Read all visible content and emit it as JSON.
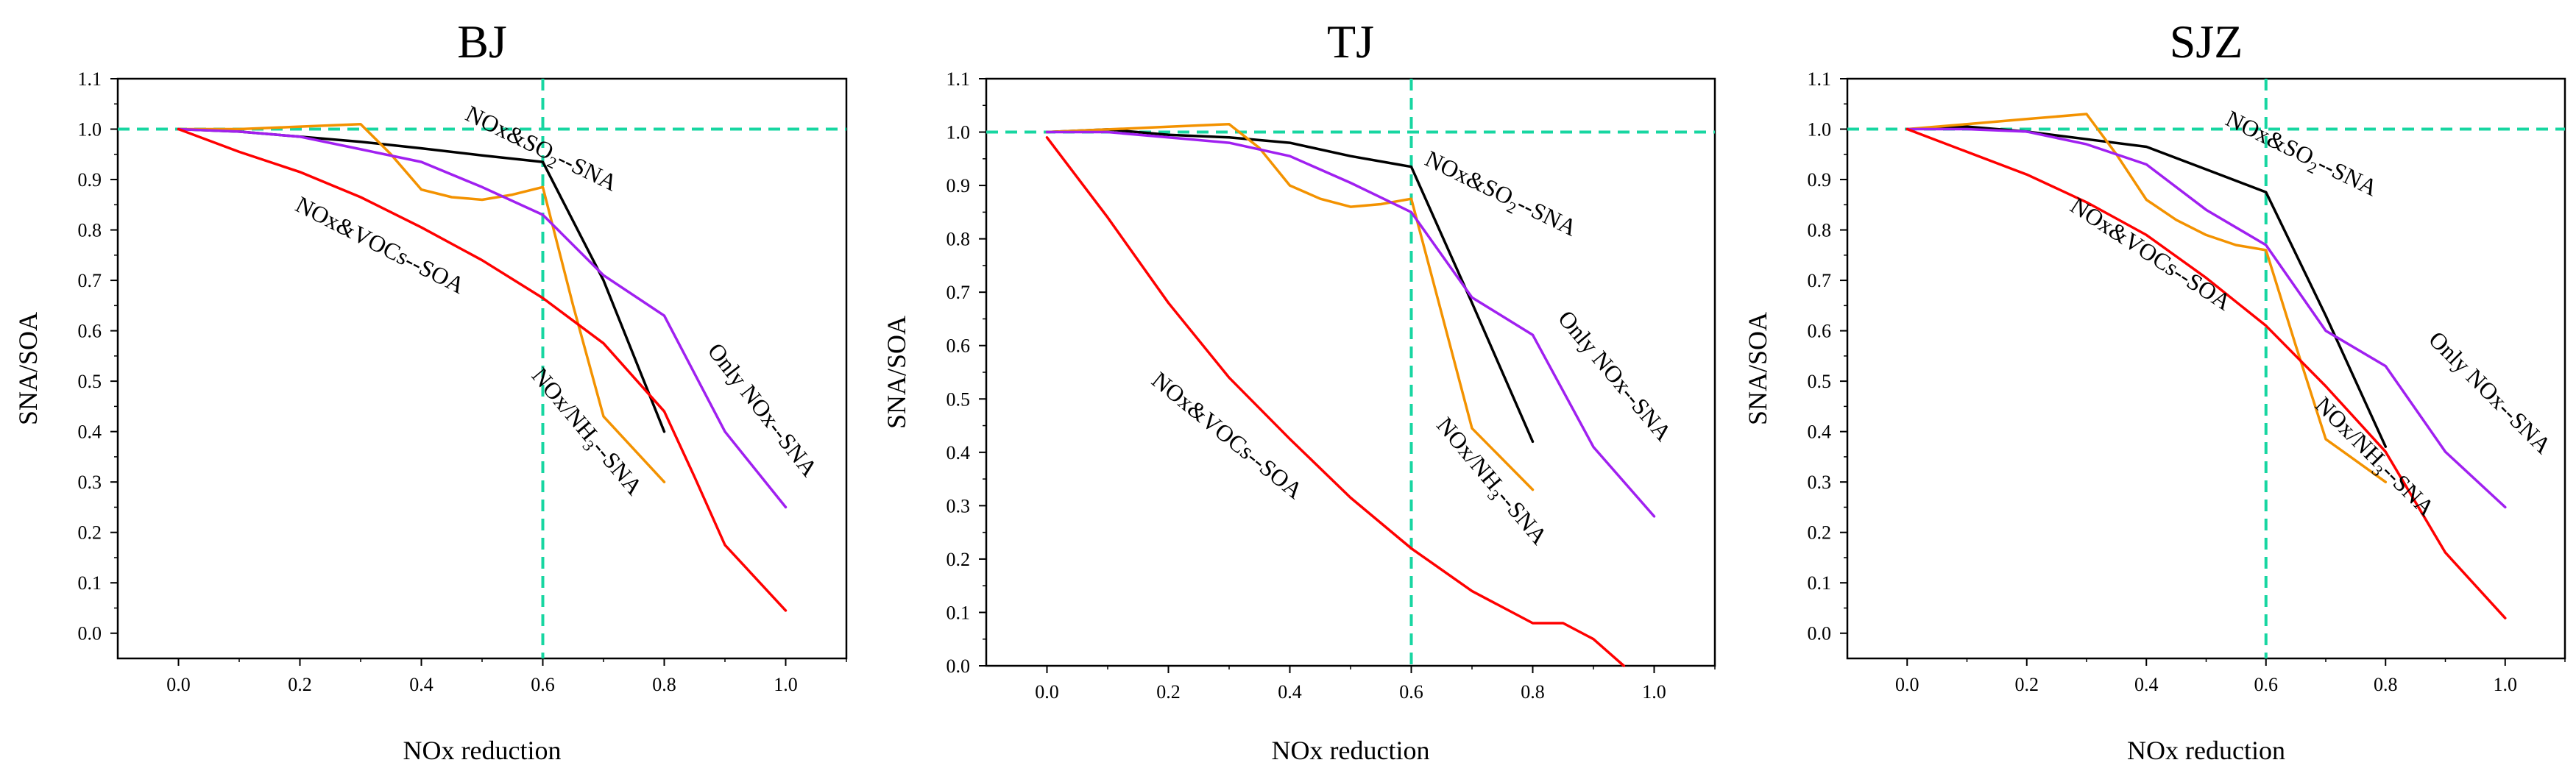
{
  "chart_data": [
    {
      "type": "line",
      "title": "BJ",
      "xlabel": "NOx reduction",
      "ylabel": "SNA/SOA",
      "xlim": [
        -0.1,
        1.1
      ],
      "ylim": [
        -0.05,
        1.1
      ],
      "xticks": [
        "0.0",
        "0.2",
        "0.4",
        "0.6",
        "0.8",
        "1.0"
      ],
      "yticks": [
        "0.0",
        "0.1",
        "0.2",
        "0.3",
        "0.4",
        "0.5",
        "0.6",
        "0.7",
        "0.8",
        "0.9",
        "1.0",
        "1.1"
      ],
      "reference_lines": {
        "x": 0.6,
        "y": 1.0,
        "color": "#17d6a1"
      },
      "series": [
        {
          "name": "NOx&SO2--SNA",
          "color": "#000000",
          "x": [
            0,
            0.1,
            0.2,
            0.3,
            0.4,
            0.5,
            0.6,
            0.7,
            0.8
          ],
          "y": [
            1.0,
            0.995,
            0.985,
            0.975,
            0.962,
            0.948,
            0.935,
            0.7,
            0.4
          ]
        },
        {
          "name": "NOx/NH3--SNA",
          "color": "#f39200",
          "x": [
            0,
            0.1,
            0.2,
            0.3,
            0.35,
            0.4,
            0.45,
            0.5,
            0.55,
            0.6,
            0.65,
            0.7,
            0.8
          ],
          "y": [
            1.0,
            1.0,
            1.005,
            1.01,
            0.95,
            0.88,
            0.865,
            0.86,
            0.87,
            0.885,
            0.65,
            0.43,
            0.3
          ]
        },
        {
          "name": "Only NOx--SNA",
          "color": "#a020f0",
          "x": [
            0,
            0.1,
            0.2,
            0.3,
            0.4,
            0.5,
            0.6,
            0.7,
            0.8,
            0.9,
            1.0
          ],
          "y": [
            1.0,
            0.995,
            0.985,
            0.96,
            0.935,
            0.885,
            0.83,
            0.71,
            0.63,
            0.4,
            0.25
          ]
        },
        {
          "name": "NOx&VOCs--SOA",
          "color": "#ff0000",
          "x": [
            0,
            0.1,
            0.2,
            0.3,
            0.4,
            0.5,
            0.6,
            0.7,
            0.8,
            0.85,
            0.9,
            1.0
          ],
          "y": [
            1.0,
            0.955,
            0.915,
            0.865,
            0.805,
            0.74,
            0.665,
            0.575,
            0.44,
            0.31,
            0.175,
            0.045
          ]
        }
      ],
      "annotations": [
        {
          "text": "NOx&SO",
          "sub": "2",
          "tail": "--SNA",
          "at": [
            0.47,
            1.02
          ],
          "angle": 26
        },
        {
          "text": "NOx&VOCs--SOA",
          "at": [
            0.19,
            0.84
          ],
          "angle": 27
        },
        {
          "text": "Only NOx--SNA",
          "at": [
            0.87,
            0.56
          ],
          "angle": 52
        },
        {
          "text": "NOx/NH",
          "sub": "3",
          "tail": "--SNA",
          "at": [
            0.58,
            0.51
          ],
          "angle": 50
        }
      ]
    },
    {
      "type": "line",
      "title": "TJ",
      "xlabel": "NOx reduction",
      "ylabel": "SNA/SOA",
      "xlim": [
        -0.1,
        1.1
      ],
      "ylim": [
        0.0,
        1.1
      ],
      "xticks": [
        "0.0",
        "0.2",
        "0.4",
        "0.6",
        "0.8",
        "1.0"
      ],
      "yticks": [
        "0.0",
        "0.1",
        "0.2",
        "0.3",
        "0.4",
        "0.5",
        "0.6",
        "0.7",
        "0.8",
        "0.9",
        "1.0",
        "1.1"
      ],
      "reference_lines": {
        "x": 0.6,
        "y": 1.0,
        "color": "#17d6a1"
      },
      "series": [
        {
          "name": "NOx&SO2--SNA",
          "color": "#000000",
          "x": [
            0,
            0.1,
            0.2,
            0.3,
            0.4,
            0.5,
            0.6,
            0.7,
            0.8
          ],
          "y": [
            1.0,
            1.005,
            0.995,
            0.99,
            0.98,
            0.955,
            0.935,
            0.68,
            0.42
          ]
        },
        {
          "name": "NOx/NH3--SNA",
          "color": "#f39200",
          "x": [
            0,
            0.1,
            0.2,
            0.3,
            0.35,
            0.4,
            0.45,
            0.5,
            0.55,
            0.6,
            0.65,
            0.7,
            0.8
          ],
          "y": [
            1.0,
            1.005,
            1.01,
            1.015,
            0.97,
            0.9,
            0.875,
            0.86,
            0.865,
            0.875,
            0.66,
            0.445,
            0.33
          ]
        },
        {
          "name": "Only NOx--SNA",
          "color": "#a020f0",
          "x": [
            0,
            0.1,
            0.2,
            0.3,
            0.4,
            0.5,
            0.6,
            0.7,
            0.8,
            0.9,
            1.0
          ],
          "y": [
            1.0,
            1.0,
            0.99,
            0.98,
            0.955,
            0.905,
            0.85,
            0.69,
            0.62,
            0.41,
            0.28
          ]
        },
        {
          "name": "NOx&VOCs--SOA",
          "color": "#ff0000",
          "x": [
            0,
            0.1,
            0.2,
            0.3,
            0.4,
            0.5,
            0.6,
            0.7,
            0.8,
            0.85,
            0.9,
            0.95
          ],
          "y": [
            0.99,
            0.84,
            0.68,
            0.54,
            0.425,
            0.315,
            0.22,
            0.14,
            0.08,
            0.08,
            0.05,
            0.0
          ]
        }
      ],
      "annotations": [
        {
          "text": "NOx&SO",
          "sub": "2",
          "tail": "--SNA",
          "at": [
            0.62,
            0.94
          ],
          "angle": 26
        },
        {
          "text": "NOx&VOCs--SOA",
          "at": [
            0.17,
            0.53
          ],
          "angle": 39
        },
        {
          "text": "Only NOx--SNA",
          "at": [
            0.84,
            0.65
          ],
          "angle": 50
        },
        {
          "text": "NOx/NH",
          "sub": "3",
          "tail": "--SNA",
          "at": [
            0.64,
            0.45
          ],
          "angle": 50
        }
      ]
    },
    {
      "type": "line",
      "title": "SJZ",
      "xlabel": "NOx reduction",
      "ylabel": "SNA/SOA",
      "xlim": [
        -0.1,
        1.1
      ],
      "ylim": [
        -0.05,
        1.1
      ],
      "xticks": [
        "0.0",
        "0.2",
        "0.4",
        "0.6",
        "0.8",
        "1.0"
      ],
      "yticks": [
        "0.0",
        "0.1",
        "0.2",
        "0.3",
        "0.4",
        "0.5",
        "0.6",
        "0.7",
        "0.8",
        "0.9",
        "1.0",
        "1.1"
      ],
      "reference_lines": {
        "x": 0.6,
        "y": 1.0,
        "color": "#17d6a1"
      },
      "series": [
        {
          "name": "NOx&SO2--SNA",
          "color": "#000000",
          "x": [
            0,
            0.1,
            0.2,
            0.3,
            0.4,
            0.5,
            0.6,
            0.7,
            0.8
          ],
          "y": [
            1.0,
            1.005,
            0.995,
            0.98,
            0.965,
            0.92,
            0.875,
            0.63,
            0.37
          ]
        },
        {
          "name": "NOx/NH3--SNA",
          "color": "#f39200",
          "x": [
            0,
            0.1,
            0.2,
            0.3,
            0.35,
            0.4,
            0.45,
            0.5,
            0.55,
            0.6,
            0.65,
            0.7,
            0.8
          ],
          "y": [
            1.0,
            1.01,
            1.02,
            1.03,
            0.95,
            0.86,
            0.82,
            0.79,
            0.77,
            0.76,
            0.57,
            0.385,
            0.3
          ]
        },
        {
          "name": "Only NOx--SNA",
          "color": "#a020f0",
          "x": [
            0,
            0.1,
            0.2,
            0.3,
            0.4,
            0.5,
            0.6,
            0.7,
            0.8,
            0.9,
            1.0
          ],
          "y": [
            1.0,
            1.0,
            0.995,
            0.97,
            0.93,
            0.84,
            0.77,
            0.6,
            0.53,
            0.36,
            0.25
          ]
        },
        {
          "name": "NOx&VOCs--SOA",
          "color": "#ff0000",
          "x": [
            0,
            0.1,
            0.2,
            0.3,
            0.4,
            0.5,
            0.6,
            0.7,
            0.8,
            0.9,
            1.0
          ],
          "y": [
            1.0,
            0.955,
            0.91,
            0.855,
            0.79,
            0.705,
            0.61,
            0.49,
            0.36,
            0.16,
            0.03
          ]
        }
      ],
      "annotations": [
        {
          "text": "NOx&SO",
          "sub": "2",
          "tail": "--SNA",
          "at": [
            0.53,
            1.01
          ],
          "angle": 26
        },
        {
          "text": "NOx&VOCs--SOA",
          "at": [
            0.27,
            0.84
          ],
          "angle": 33
        },
        {
          "text": "Only NOx--SNA",
          "at": [
            0.87,
            0.58
          ],
          "angle": 45
        },
        {
          "text": "NOx/NH",
          "sub": "3",
          "tail": "--SNA",
          "at": [
            0.68,
            0.45
          ],
          "angle": 45
        }
      ]
    }
  ]
}
